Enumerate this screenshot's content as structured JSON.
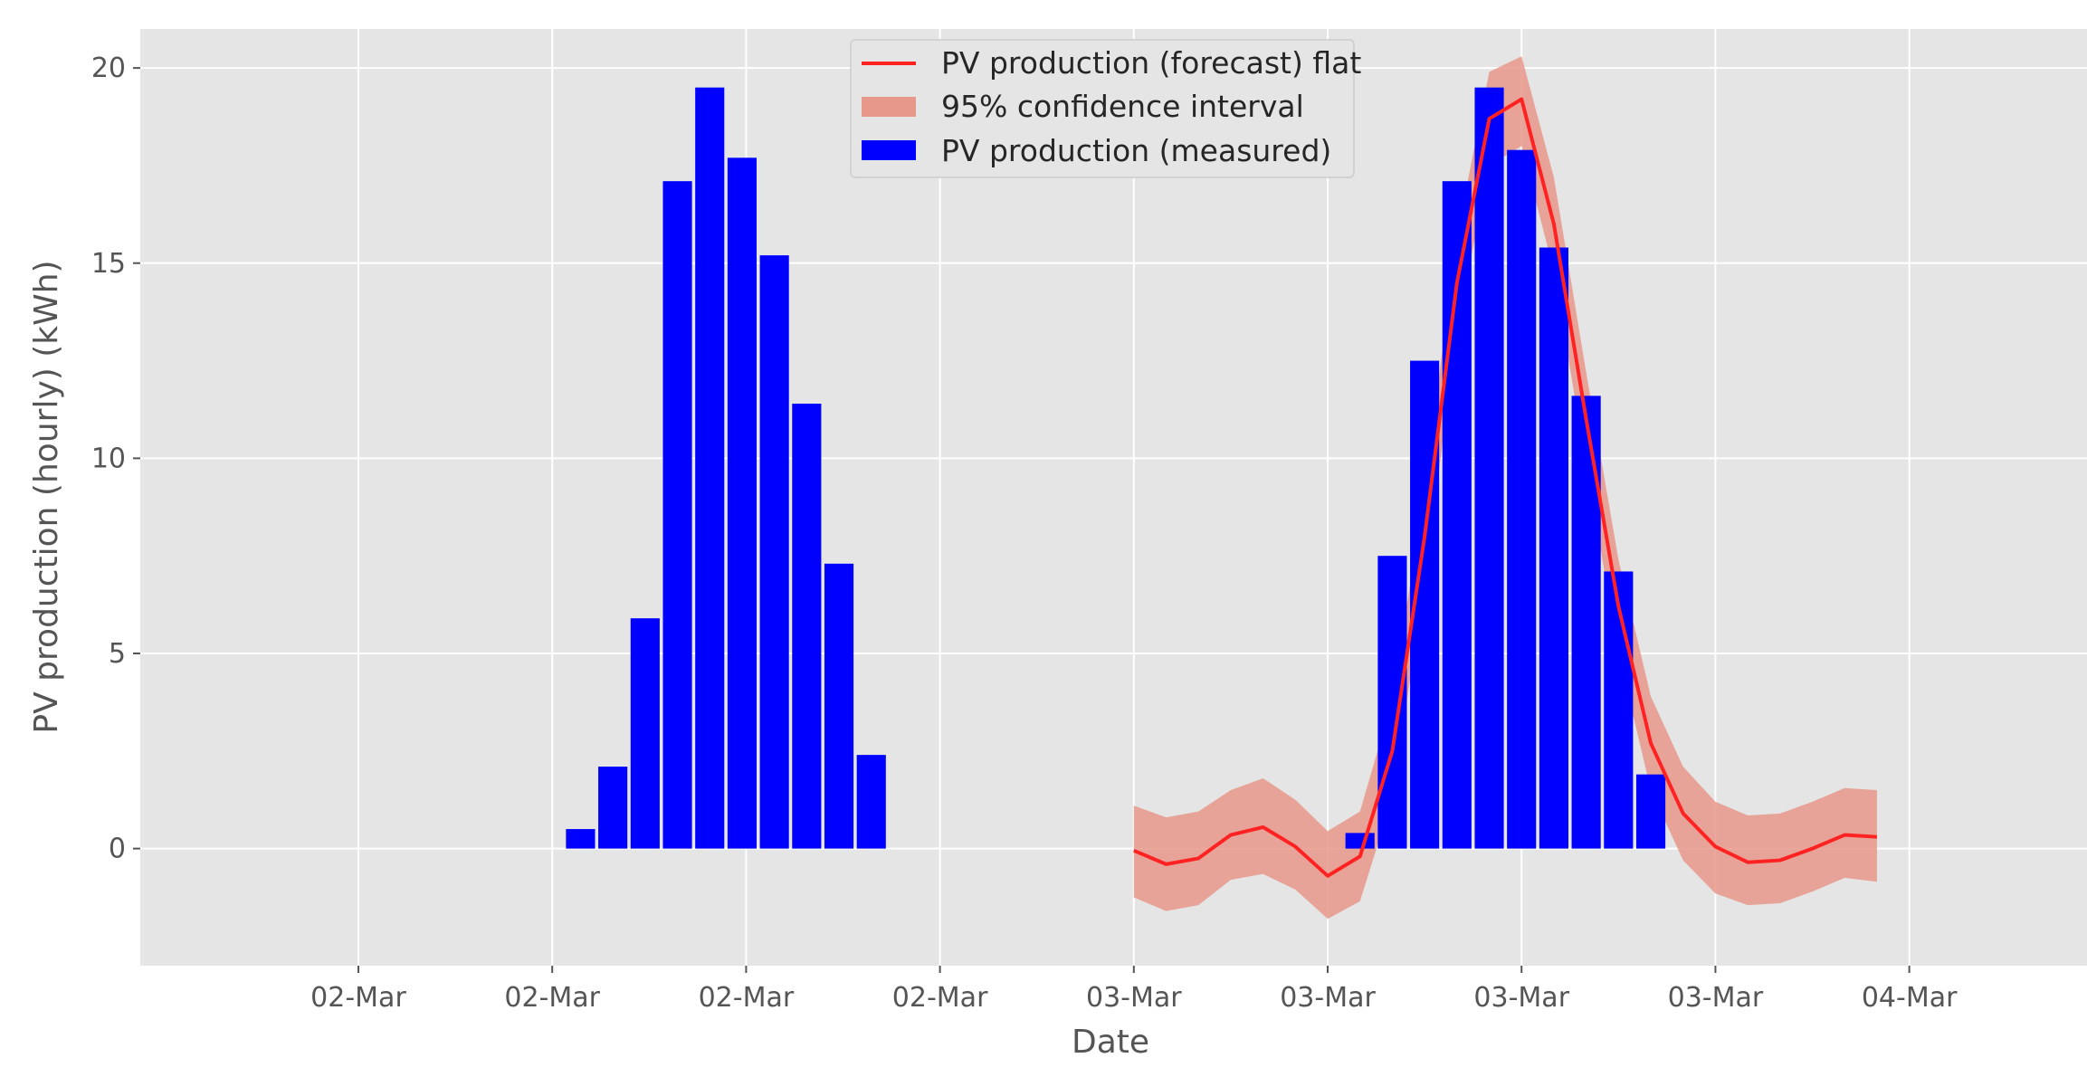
{
  "chart_data": {
    "type": "bar+line",
    "title": "",
    "xlabel": "Date",
    "ylabel": "PV production (hourly) (kWh)",
    "ylim": [
      -3,
      21
    ],
    "xlim_hours": [
      -5.4,
      42.8
    ],
    "grid": true,
    "legend_position": "top-center",
    "x_ticks": [
      {
        "hour": 0,
        "label": "02-Mar"
      },
      {
        "hour": 4.8,
        "label": "02-Mar"
      },
      {
        "hour": 9.6,
        "label": "02-Mar"
      },
      {
        "hour": 14.4,
        "label": "02-Mar"
      },
      {
        "hour": 19.2,
        "label": "03-Mar"
      },
      {
        "hour": 24,
        "label": "03-Mar"
      },
      {
        "hour": 28.8,
        "label": "03-Mar"
      },
      {
        "hour": 33.6,
        "label": "03-Mar"
      },
      {
        "hour": 38.4,
        "label": "04-Mar"
      }
    ],
    "y_ticks": [
      0,
      5,
      10,
      15,
      20
    ],
    "legend": [
      {
        "key": "forecast",
        "label": "PV production (forecast) flat",
        "kind": "line",
        "color": "#ff2222"
      },
      {
        "key": "ci",
        "label": "95% confidence interval",
        "kind": "patch",
        "color": "#e8988a"
      },
      {
        "key": "measured",
        "label": "PV production (measured)",
        "kind": "patch",
        "color": "#0000ff"
      }
    ],
    "series": [
      {
        "name": "PV production (measured)",
        "type": "bar",
        "color": "#0000ff",
        "points": [
          {
            "hour": 5.5,
            "value": 0.5
          },
          {
            "hour": 6.3,
            "value": 2.1
          },
          {
            "hour": 7.1,
            "value": 5.9
          },
          {
            "hour": 7.9,
            "value": 17.1
          },
          {
            "hour": 8.7,
            "value": 19.5
          },
          {
            "hour": 9.5,
            "value": 17.7
          },
          {
            "hour": 10.3,
            "value": 15.2
          },
          {
            "hour": 11.1,
            "value": 11.4
          },
          {
            "hour": 11.9,
            "value": 7.3
          },
          {
            "hour": 12.7,
            "value": 2.4
          },
          {
            "hour": 24.8,
            "value": 0.4
          },
          {
            "hour": 25.6,
            "value": 7.5
          },
          {
            "hour": 26.4,
            "value": 12.5
          },
          {
            "hour": 27.2,
            "value": 17.1
          },
          {
            "hour": 28.0,
            "value": 19.5
          },
          {
            "hour": 28.8,
            "value": 17.9
          },
          {
            "hour": 29.6,
            "value": 15.4
          },
          {
            "hour": 30.4,
            "value": 11.6
          },
          {
            "hour": 31.2,
            "value": 7.1
          },
          {
            "hour": 32.0,
            "value": 1.9
          }
        ]
      },
      {
        "name": "PV production (forecast) flat",
        "type": "line",
        "color": "#ff2222",
        "points": [
          {
            "hour": 19.2,
            "value": -0.05
          },
          {
            "hour": 20.0,
            "value": -0.4
          },
          {
            "hour": 20.8,
            "value": -0.25
          },
          {
            "hour": 21.6,
            "value": 0.35
          },
          {
            "hour": 22.4,
            "value": 0.55
          },
          {
            "hour": 23.2,
            "value": 0.05
          },
          {
            "hour": 24.0,
            "value": -0.7
          },
          {
            "hour": 24.8,
            "value": -0.2
          },
          {
            "hour": 25.6,
            "value": 2.5
          },
          {
            "hour": 26.4,
            "value": 8.0
          },
          {
            "hour": 27.2,
            "value": 14.5
          },
          {
            "hour": 28.0,
            "value": 18.7
          },
          {
            "hour": 28.8,
            "value": 19.2
          },
          {
            "hour": 29.6,
            "value": 16.0
          },
          {
            "hour": 30.4,
            "value": 11.0
          },
          {
            "hour": 31.2,
            "value": 6.2
          },
          {
            "hour": 32.0,
            "value": 2.7
          },
          {
            "hour": 32.8,
            "value": 0.9
          },
          {
            "hour": 33.6,
            "value": 0.05
          },
          {
            "hour": 34.4,
            "value": -0.35
          },
          {
            "hour": 35.2,
            "value": -0.3
          },
          {
            "hour": 36.0,
            "value": 0.0
          },
          {
            "hour": 36.8,
            "value": 0.35
          },
          {
            "hour": 37.6,
            "value": 0.3
          }
        ]
      },
      {
        "name": "95% confidence interval",
        "type": "band",
        "color": "#e8988a",
        "points": [
          {
            "hour": 19.2,
            "lower": -1.25,
            "upper": 1.1
          },
          {
            "hour": 20.0,
            "lower": -1.6,
            "upper": 0.8
          },
          {
            "hour": 20.8,
            "lower": -1.45,
            "upper": 0.95
          },
          {
            "hour": 21.6,
            "lower": -0.8,
            "upper": 1.5
          },
          {
            "hour": 22.4,
            "lower": -0.65,
            "upper": 1.8
          },
          {
            "hour": 23.2,
            "lower": -1.05,
            "upper": 1.25
          },
          {
            "hour": 24.0,
            "lower": -1.8,
            "upper": 0.45
          },
          {
            "hour": 24.8,
            "lower": -1.35,
            "upper": 0.95
          },
          {
            "hour": 25.6,
            "lower": 1.3,
            "upper": 3.8
          },
          {
            "hour": 26.4,
            "lower": 6.8,
            "upper": 9.2
          },
          {
            "hour": 27.2,
            "lower": 13.3,
            "upper": 15.7
          },
          {
            "hour": 28.0,
            "lower": 17.5,
            "upper": 19.9
          },
          {
            "hour": 28.8,
            "lower": 18.0,
            "upper": 20.3
          },
          {
            "hour": 29.6,
            "lower": 14.8,
            "upper": 17.2
          },
          {
            "hour": 30.4,
            "lower": 9.8,
            "upper": 12.2
          },
          {
            "hour": 31.2,
            "lower": 5.0,
            "upper": 7.4
          },
          {
            "hour": 32.0,
            "lower": 1.5,
            "upper": 3.9
          },
          {
            "hour": 32.8,
            "lower": -0.3,
            "upper": 2.1
          },
          {
            "hour": 33.6,
            "lower": -1.15,
            "upper": 1.2
          },
          {
            "hour": 34.4,
            "lower": -1.45,
            "upper": 0.85
          },
          {
            "hour": 35.2,
            "lower": -1.4,
            "upper": 0.9
          },
          {
            "hour": 36.0,
            "lower": -1.1,
            "upper": 1.2
          },
          {
            "hour": 36.8,
            "lower": -0.75,
            "upper": 1.55
          },
          {
            "hour": 37.6,
            "lower": -0.85,
            "upper": 1.5
          }
        ]
      }
    ]
  }
}
